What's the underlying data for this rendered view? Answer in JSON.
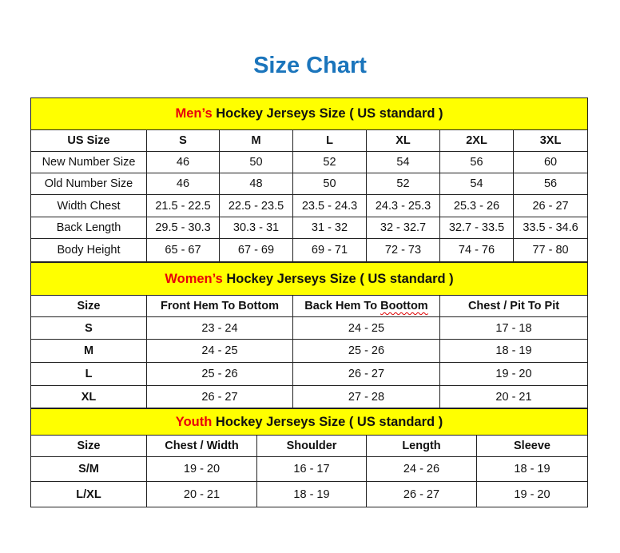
{
  "title": "Size Chart",
  "colors": {
    "title": "#1B75BC",
    "header_bg": "#FFFF00",
    "accent_red": "#E8000B"
  },
  "sections": [
    {
      "id": "men",
      "header_highlight": "Men’s",
      "header_rest": " Hockey Jerseys Size ( US standard )",
      "columns": [
        "US Size",
        "S",
        "M",
        "L",
        "XL",
        "2XL",
        "3XL"
      ],
      "widths": [
        145,
        91,
        92,
        92,
        92,
        92,
        93
      ],
      "header_height": 40,
      "row_heights": [
        27,
        27,
        27,
        28,
        27,
        29
      ],
      "first_col_bold": false,
      "rows": [
        [
          "New Number Size",
          "46",
          "50",
          "52",
          "54",
          "56",
          "60"
        ],
        [
          "Old Number Size",
          "46",
          "48",
          "50",
          "52",
          "54",
          "56"
        ],
        [
          "Width Chest",
          "21.5 - 22.5",
          "22.5 - 23.5",
          "23.5 - 24.3",
          "24.3 - 25.3",
          "25.3 - 26",
          "26 - 27"
        ],
        [
          "Back Length",
          "29.5 - 30.3",
          "30.3 - 31",
          "31 - 32",
          "32 - 32.7",
          "32.7 - 33.5",
          "33.5 - 34.6"
        ],
        [
          "Body Height",
          "65 - 67",
          "67 - 69",
          "69 - 71",
          "72 - 73",
          "74 - 76",
          "77 - 80"
        ]
      ]
    },
    {
      "id": "women",
      "header_highlight": "Women’s",
      "header_rest": " Hockey Jerseys Size ( US standard )",
      "columns": [
        "Size",
        "Front Hem To Bottom",
        "Back Hem To Boottom",
        "Chest / Pit To Pit"
      ],
      "widths": [
        145,
        183,
        184,
        185
      ],
      "header_height": 41,
      "row_heights": [
        27,
        28,
        29,
        29,
        28
      ],
      "first_col_bold": true,
      "rows": [
        [
          "S",
          "23 - 24",
          "24 - 25",
          "17 - 18"
        ],
        [
          "M",
          "24 - 25",
          "25 - 26",
          "18 - 19"
        ],
        [
          "L",
          "25 - 26",
          "26 - 27",
          "19 - 20"
        ],
        [
          "XL",
          "26 - 27",
          "27 - 28",
          "20 - 21"
        ]
      ]
    },
    {
      "id": "youth",
      "header_highlight": "Youth",
      "header_rest": " Hockey Jerseys Size ( US standard )",
      "columns": [
        "Size",
        "Chest / Width",
        "Shoulder",
        "Length",
        "Sleeve"
      ],
      "widths": [
        145,
        138,
        137,
        138,
        139
      ],
      "header_height": 33,
      "row_heights": [
        27,
        31,
        32
      ],
      "first_col_bold": true,
      "rows": [
        [
          "S/M",
          "19 - 20",
          "16 - 17",
          "24 - 26",
          "18 - 19"
        ],
        [
          "L/XL",
          "20 - 21",
          "18 - 19",
          "26 - 27",
          "19 - 20"
        ]
      ]
    }
  ]
}
